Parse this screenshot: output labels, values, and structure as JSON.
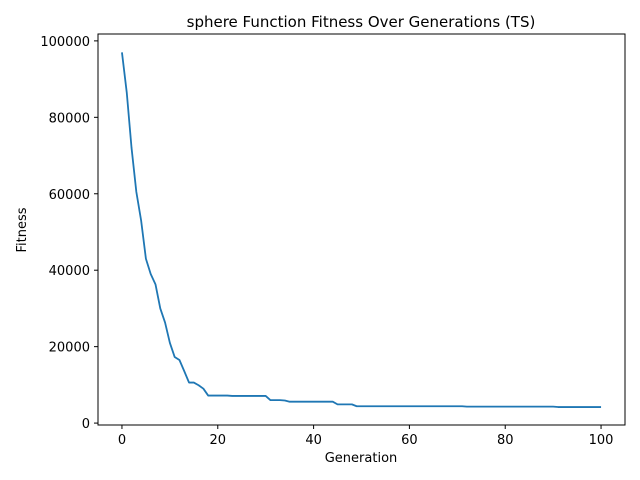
{
  "chart_data": {
    "type": "line",
    "title": "sphere Function Fitness Over Generations (TS)",
    "xlabel": "Generation",
    "ylabel": "Fitness",
    "xlim": [
      -5,
      105
    ],
    "ylim": [
      -500,
      101800
    ],
    "xticks": [
      0,
      20,
      40,
      60,
      80,
      100
    ],
    "yticks": [
      0,
      20000,
      40000,
      60000,
      80000,
      100000
    ],
    "grid": false,
    "line_color": "#1f77b4",
    "series": [
      {
        "x": [
          0,
          1,
          2,
          3,
          4,
          5,
          6,
          7,
          8,
          9,
          10,
          11,
          12,
          13,
          14,
          15,
          16,
          17,
          18,
          19,
          20,
          21,
          22,
          23,
          24,
          25,
          26,
          27,
          28,
          29,
          30,
          31,
          32,
          33,
          34,
          35,
          36,
          37,
          38,
          39,
          40,
          41,
          42,
          43,
          44,
          45,
          46,
          47,
          48,
          49,
          50,
          51,
          52,
          53,
          54,
          55,
          56,
          57,
          58,
          59,
          60,
          61,
          62,
          63,
          64,
          65,
          66,
          67,
          68,
          69,
          70,
          71,
          72,
          73,
          74,
          75,
          76,
          77,
          78,
          79,
          80,
          81,
          82,
          83,
          84,
          85,
          86,
          87,
          88,
          89,
          90,
          91,
          92,
          93,
          94,
          95,
          96,
          97,
          98,
          99,
          100
        ],
        "values": [
          97000,
          86500,
          72000,
          60500,
          53000,
          43000,
          39000,
          36300,
          30000,
          26300,
          21000,
          17300,
          16500,
          13600,
          10600,
          10600,
          9900,
          9000,
          7200,
          7200,
          7200,
          7200,
          7200,
          7100,
          7100,
          7100,
          7100,
          7100,
          7100,
          7100,
          7100,
          6000,
          6000,
          6000,
          5900,
          5600,
          5600,
          5600,
          5600,
          5600,
          5600,
          5600,
          5600,
          5600,
          5600,
          4900,
          4900,
          4900,
          4900,
          4400,
          4400,
          4400,
          4400,
          4400,
          4400,
          4400,
          4400,
          4400,
          4400,
          4400,
          4400,
          4400,
          4400,
          4400,
          4400,
          4400,
          4400,
          4400,
          4400,
          4400,
          4400,
          4400,
          4300,
          4300,
          4300,
          4300,
          4300,
          4300,
          4300,
          4300,
          4300,
          4300,
          4300,
          4300,
          4300,
          4300,
          4300,
          4300,
          4300,
          4300,
          4300,
          4200,
          4200,
          4200,
          4200,
          4200,
          4200,
          4200,
          4200,
          4200,
          4200
        ]
      }
    ]
  }
}
